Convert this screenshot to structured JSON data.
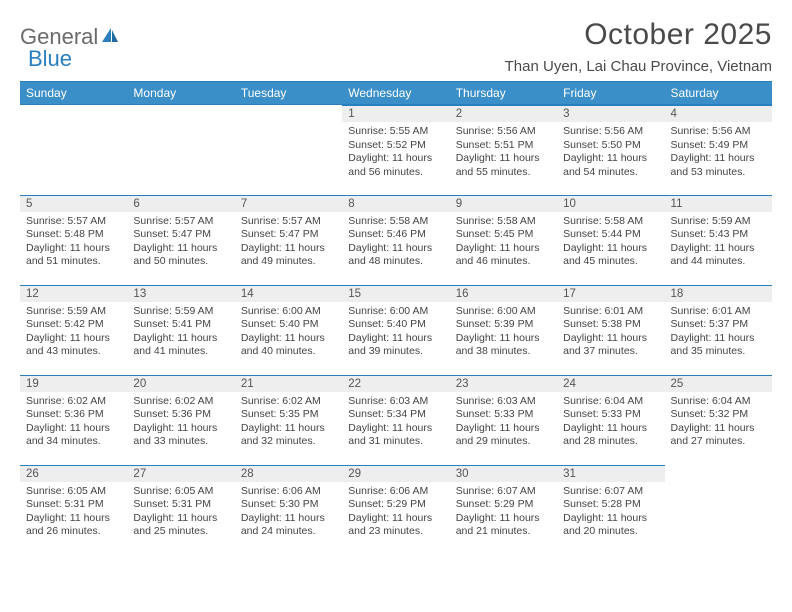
{
  "logo": {
    "text1": "General",
    "text2": "Blue"
  },
  "title": "October 2025",
  "location": "Than Uyen, Lai Chau Province, Vietnam",
  "colors": {
    "header_bg": "#3b8fc9",
    "header_text": "#ffffff",
    "rule": "#2a7fbf",
    "daynum_bg": "#eeeeee",
    "body_text": "#444444",
    "title_text": "#4a4a4a"
  },
  "day_headers": [
    "Sunday",
    "Monday",
    "Tuesday",
    "Wednesday",
    "Thursday",
    "Friday",
    "Saturday"
  ],
  "weeks": [
    [
      null,
      null,
      null,
      {
        "n": "1",
        "sr": "5:55 AM",
        "ss": "5:52 PM",
        "dl": "11 hours and 56 minutes."
      },
      {
        "n": "2",
        "sr": "5:56 AM",
        "ss": "5:51 PM",
        "dl": "11 hours and 55 minutes."
      },
      {
        "n": "3",
        "sr": "5:56 AM",
        "ss": "5:50 PM",
        "dl": "11 hours and 54 minutes."
      },
      {
        "n": "4",
        "sr": "5:56 AM",
        "ss": "5:49 PM",
        "dl": "11 hours and 53 minutes."
      }
    ],
    [
      {
        "n": "5",
        "sr": "5:57 AM",
        "ss": "5:48 PM",
        "dl": "11 hours and 51 minutes."
      },
      {
        "n": "6",
        "sr": "5:57 AM",
        "ss": "5:47 PM",
        "dl": "11 hours and 50 minutes."
      },
      {
        "n": "7",
        "sr": "5:57 AM",
        "ss": "5:47 PM",
        "dl": "11 hours and 49 minutes."
      },
      {
        "n": "8",
        "sr": "5:58 AM",
        "ss": "5:46 PM",
        "dl": "11 hours and 48 minutes."
      },
      {
        "n": "9",
        "sr": "5:58 AM",
        "ss": "5:45 PM",
        "dl": "11 hours and 46 minutes."
      },
      {
        "n": "10",
        "sr": "5:58 AM",
        "ss": "5:44 PM",
        "dl": "11 hours and 45 minutes."
      },
      {
        "n": "11",
        "sr": "5:59 AM",
        "ss": "5:43 PM",
        "dl": "11 hours and 44 minutes."
      }
    ],
    [
      {
        "n": "12",
        "sr": "5:59 AM",
        "ss": "5:42 PM",
        "dl": "11 hours and 43 minutes."
      },
      {
        "n": "13",
        "sr": "5:59 AM",
        "ss": "5:41 PM",
        "dl": "11 hours and 41 minutes."
      },
      {
        "n": "14",
        "sr": "6:00 AM",
        "ss": "5:40 PM",
        "dl": "11 hours and 40 minutes."
      },
      {
        "n": "15",
        "sr": "6:00 AM",
        "ss": "5:40 PM",
        "dl": "11 hours and 39 minutes."
      },
      {
        "n": "16",
        "sr": "6:00 AM",
        "ss": "5:39 PM",
        "dl": "11 hours and 38 minutes."
      },
      {
        "n": "17",
        "sr": "6:01 AM",
        "ss": "5:38 PM",
        "dl": "11 hours and 37 minutes."
      },
      {
        "n": "18",
        "sr": "6:01 AM",
        "ss": "5:37 PM",
        "dl": "11 hours and 35 minutes."
      }
    ],
    [
      {
        "n": "19",
        "sr": "6:02 AM",
        "ss": "5:36 PM",
        "dl": "11 hours and 34 minutes."
      },
      {
        "n": "20",
        "sr": "6:02 AM",
        "ss": "5:36 PM",
        "dl": "11 hours and 33 minutes."
      },
      {
        "n": "21",
        "sr": "6:02 AM",
        "ss": "5:35 PM",
        "dl": "11 hours and 32 minutes."
      },
      {
        "n": "22",
        "sr": "6:03 AM",
        "ss": "5:34 PM",
        "dl": "11 hours and 31 minutes."
      },
      {
        "n": "23",
        "sr": "6:03 AM",
        "ss": "5:33 PM",
        "dl": "11 hours and 29 minutes."
      },
      {
        "n": "24",
        "sr": "6:04 AM",
        "ss": "5:33 PM",
        "dl": "11 hours and 28 minutes."
      },
      {
        "n": "25",
        "sr": "6:04 AM",
        "ss": "5:32 PM",
        "dl": "11 hours and 27 minutes."
      }
    ],
    [
      {
        "n": "26",
        "sr": "6:05 AM",
        "ss": "5:31 PM",
        "dl": "11 hours and 26 minutes."
      },
      {
        "n": "27",
        "sr": "6:05 AM",
        "ss": "5:31 PM",
        "dl": "11 hours and 25 minutes."
      },
      {
        "n": "28",
        "sr": "6:06 AM",
        "ss": "5:30 PM",
        "dl": "11 hours and 24 minutes."
      },
      {
        "n": "29",
        "sr": "6:06 AM",
        "ss": "5:29 PM",
        "dl": "11 hours and 23 minutes."
      },
      {
        "n": "30",
        "sr": "6:07 AM",
        "ss": "5:29 PM",
        "dl": "11 hours and 21 minutes."
      },
      {
        "n": "31",
        "sr": "6:07 AM",
        "ss": "5:28 PM",
        "dl": "11 hours and 20 minutes."
      },
      null
    ]
  ],
  "labels": {
    "sunrise": "Sunrise:",
    "sunset": "Sunset:",
    "daylight": "Daylight:"
  }
}
